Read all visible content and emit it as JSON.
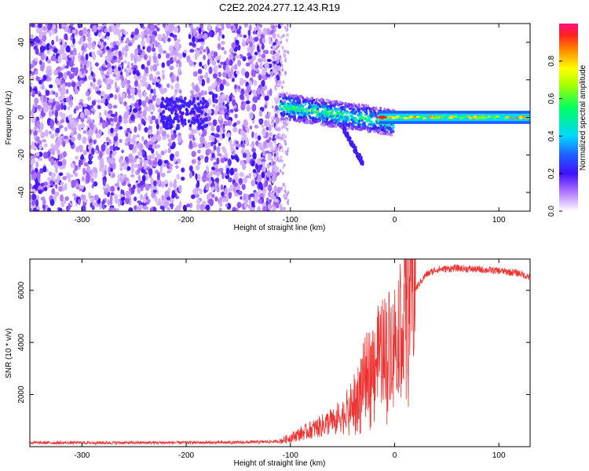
{
  "title": "C2E2.2024.277.12.43.R19",
  "chart_data": [
    {
      "type": "heatmap",
      "xlabel": "Height of straight line (km)",
      "ylabel": "Frequency (Hz)",
      "xlim": [
        -350,
        130
      ],
      "ylim": [
        -50,
        50
      ],
      "x_ticks": [
        -300,
        -200,
        -100,
        0,
        100
      ],
      "y_ticks": [
        -40,
        -20,
        0,
        20,
        40
      ],
      "colorbar": {
        "label": "Normalized spectral amplitude",
        "range": [
          0,
          1
        ],
        "ticks": [
          0.0,
          0.2,
          0.4,
          0.6,
          0.8
        ]
      },
      "features": [
        {
          "x_range": [
            -350,
            -110
          ],
          "freq_range": [
            -50,
            50
          ],
          "amplitude": 0.2
        },
        {
          "x_range": [
            -110,
            0
          ],
          "freq_range": [
            -5,
            10
          ],
          "amplitude": 0.5
        },
        {
          "x_range": [
            0,
            130
          ],
          "freq_range": [
            -2,
            2
          ],
          "amplitude": 0.4
        }
      ]
    },
    {
      "type": "line",
      "xlabel": "Height of straight line (km)",
      "ylabel": "SNR (10 * v/v)",
      "xlim": [
        -350,
        130
      ],
      "ylim": [
        0,
        7200
      ],
      "x_ticks": [
        -300,
        -200,
        -100,
        0,
        100
      ],
      "y_ticks": [
        2000,
        4000,
        6000
      ],
      "color": "#ee3333",
      "x": [
        -350,
        -250,
        -150,
        -110,
        -90,
        -70,
        -50,
        -40,
        -30,
        -20,
        -10,
        0,
        10,
        30,
        40,
        60,
        80,
        100,
        120,
        130
      ],
      "values": [
        150,
        150,
        160,
        200,
        500,
        800,
        1200,
        1700,
        2600,
        3300,
        3800,
        4200,
        5500,
        6600,
        6800,
        6850,
        6800,
        6750,
        6650,
        6500
      ]
    }
  ]
}
